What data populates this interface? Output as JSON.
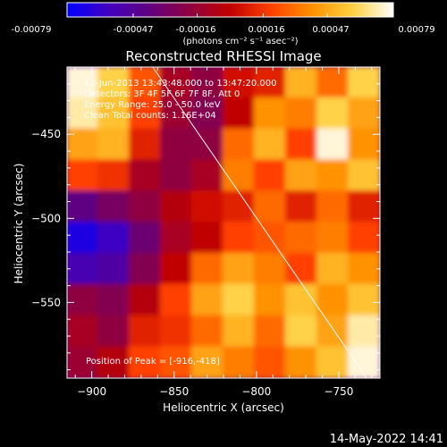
{
  "colorbar": {
    "ticks": [
      "-0.00079",
      "-0.00047",
      "-0.00016",
      "0.00016",
      "0.00047",
      "0.00079"
    ],
    "tick_values": [
      -0.00079,
      -0.00047,
      -0.00016,
      0.00016,
      0.00047,
      0.00079
    ],
    "range": [
      -0.00079,
      0.00079
    ],
    "unit_label": "(photons cm⁻² s⁻¹ asec⁻²)",
    "colormap": [
      "#0000ff",
      "#4000c0",
      "#600080",
      "#900040",
      "#c00000",
      "#ff4000",
      "#ff9000",
      "#ffd040",
      "#ffffff"
    ]
  },
  "header_lines": [
    "12-Jun-2013 13:43:48.000 to 13:47:20.000",
    "Detectors: 3F 4F 5F 6F 7F 8F, Att 0",
    "Energy Range: 25.0 - 50.0 keV",
    "Clean     Total counts: 1.16E+04"
  ],
  "peak_label": "Position of Peak = [-916,-418]",
  "footer_timestamp": "14-May-2022 14:41",
  "chart_data": {
    "type": "heatmap",
    "title": "Reconstructed RHESSI Image",
    "xlabel": "Heliocentric X (arcsec)",
    "ylabel": "Heliocentric Y (arcsec)",
    "xlim": [
      -915,
      -725
    ],
    "ylim": [
      -595,
      -410
    ],
    "xticks": [
      -900,
      -850,
      -800,
      -750
    ],
    "yticks": [
      -450,
      -500,
      -550
    ],
    "xtick_labels": [
      "−900",
      "−850",
      "−800",
      "−750"
    ],
    "ytick_labels": [
      "−450",
      "−500",
      "−550"
    ],
    "grid": false,
    "limb_line": [
      [
        -863,
        -410
      ],
      [
        -733,
        -595
      ]
    ],
    "peak_position": [
      -916,
      -418
    ],
    "intensity_map": {
      "x_centers": [
        -905.5,
        -886.5,
        -867.5,
        -848.5,
        -829.5,
        -810.5,
        -791.5,
        -772.5,
        -753.5,
        -734.5
      ],
      "y_centers": [
        -419.25,
        -437.75,
        -456.25,
        -474.75,
        -493.25,
        -511.75,
        -530.25,
        -548.75,
        -567.25,
        -585.75
      ],
      "z": [
        [
          0.00075,
          0.0006,
          0.00025,
          -0.0001,
          -0.0002,
          5e-05,
          0.0001,
          0.0005,
          0.0003,
          0.0006
        ],
        [
          0.0007,
          0.00055,
          0.0002,
          -0.00015,
          -0.00025,
          0.0,
          0.0004,
          0.00035,
          0.0006,
          0.00045
        ],
        [
          0.00045,
          0.0005,
          0.0001,
          -0.0002,
          -0.0002,
          0.0003,
          0.0005,
          0.0002,
          0.00075,
          0.0004
        ],
        [
          0.0002,
          0.00015,
          -0.0001,
          -0.0002,
          -0.0001,
          0.00035,
          0.0002,
          0.00045,
          0.0004,
          0.00055
        ],
        [
          -0.0004,
          -0.0003,
          -0.0002,
          -5e-05,
          5e-05,
          0.0001,
          0.0003,
          0.0001,
          0.0003,
          0.0001
        ],
        [
          -0.0007,
          -0.0006,
          -0.00035,
          -0.0001,
          0.0,
          0.0002,
          0.00025,
          0.0003,
          0.00035,
          0.0002
        ],
        [
          -0.00055,
          -0.0005,
          -0.00025,
          0.0,
          0.0003,
          0.00045,
          0.00035,
          0.0002,
          0.0005,
          0.0004
        ],
        [
          -0.0002,
          -0.00025,
          -5e-05,
          0.0002,
          0.00045,
          0.0006,
          0.0004,
          0.00055,
          0.0004,
          0.00055
        ],
        [
          -0.0001,
          -0.0002,
          0.0001,
          0.00015,
          0.0003,
          0.0005,
          0.0003,
          0.0006,
          0.00045,
          0.0007
        ],
        [
          -0.00015,
          -5e-05,
          0.0002,
          0.00025,
          0.00045,
          0.00035,
          0.00025,
          0.0004,
          0.00055,
          0.00075
        ]
      ]
    }
  }
}
